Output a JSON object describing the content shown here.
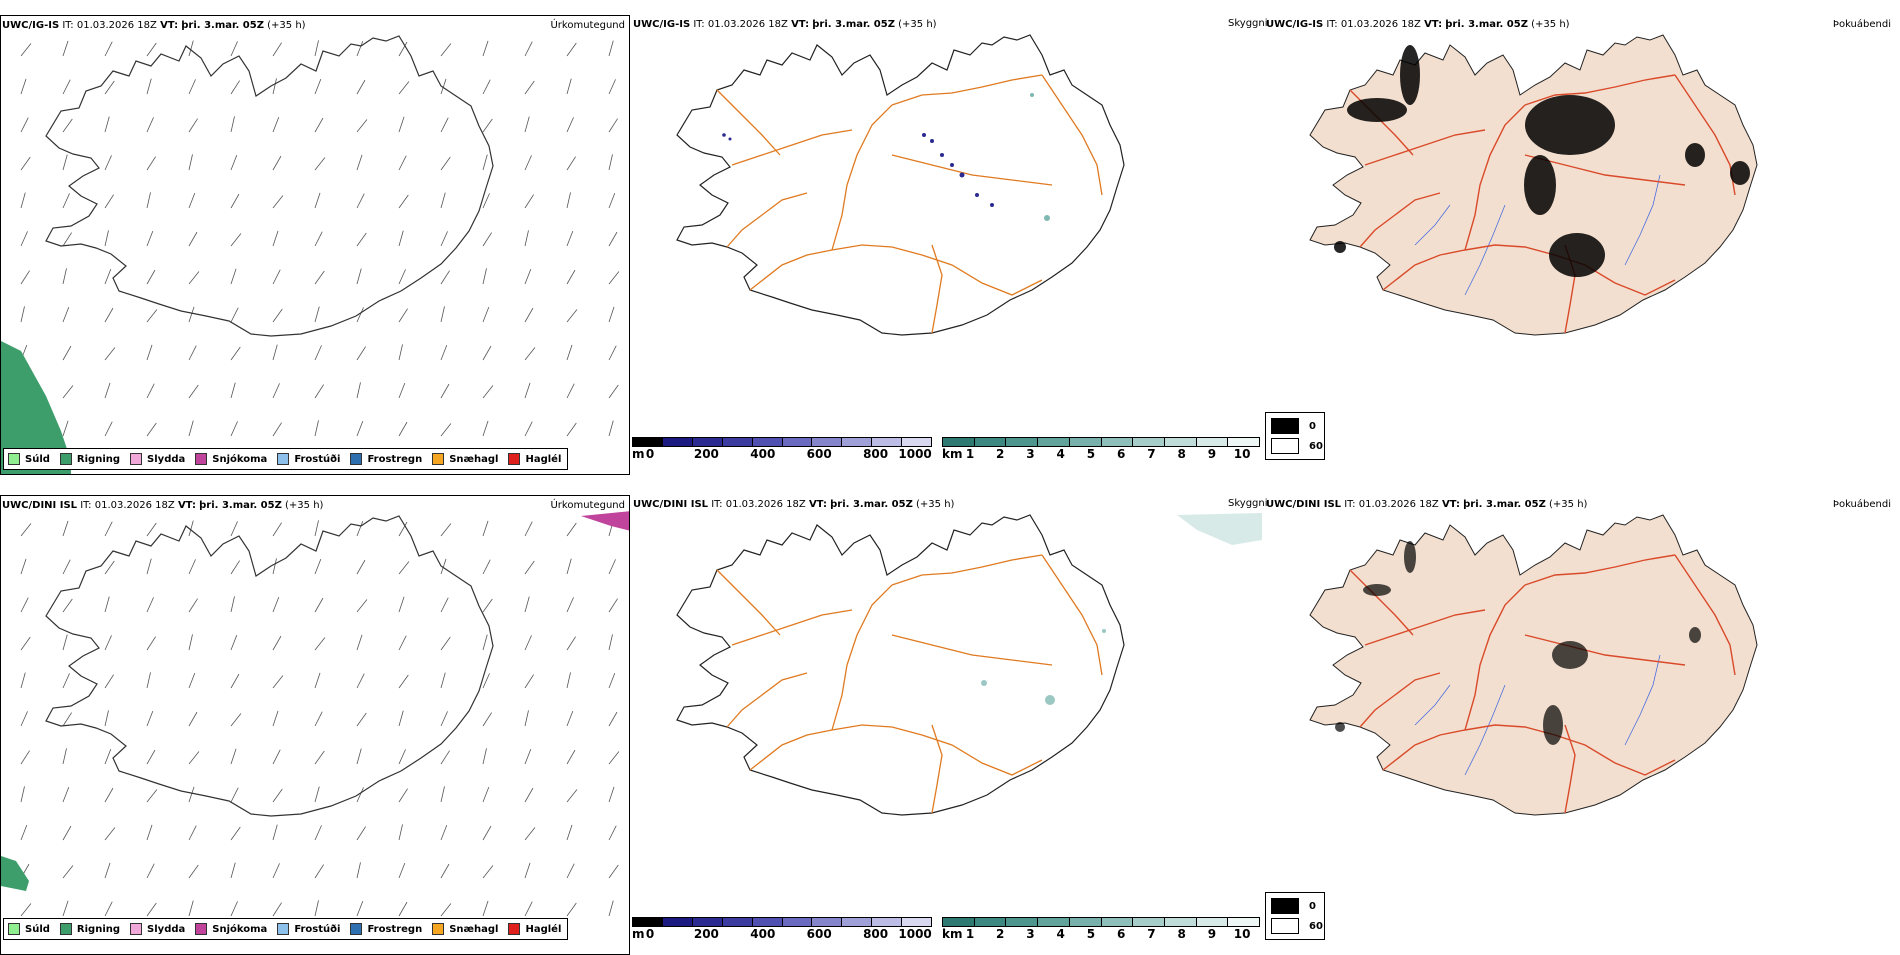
{
  "rows": [
    {
      "model": "UWC/IG-IS",
      "it_label": "IT:",
      "it_value": "01.03.2026 18Z",
      "vt_label": "VT:",
      "vt_value": "þri. 3.mar. 05Z",
      "lead": "(+35 h)"
    },
    {
      "model": "UWC/DINI ISL",
      "it_label": "IT:",
      "it_value": "01.03.2026 18Z",
      "vt_label": "VT:",
      "vt_value": "þri. 3.mar. 05Z",
      "lead": "(+35 h)"
    }
  ],
  "panel_titles": {
    "precip_type": "Úrkomutegund",
    "visibility": "Skyggni",
    "fog_index": "Þokuábendi"
  },
  "precip_legend": [
    {
      "label": "Súld",
      "color": "#90ee90"
    },
    {
      "label": "Rigning",
      "color": "#3d9e6c"
    },
    {
      "label": "Slydda",
      "color": "#f0a8d8"
    },
    {
      "label": "Snjókoma",
      "color": "#c0449c"
    },
    {
      "label": "Frostúði",
      "color": "#8ec0ec"
    },
    {
      "label": "Frostregn",
      "color": "#2e6fb0"
    },
    {
      "label": "Snæhagl",
      "color": "#f5a623"
    },
    {
      "label": "Haglél",
      "color": "#e0201c"
    }
  ],
  "cloud_base_bar": {
    "unit": "m",
    "ticks": [
      "0",
      "200",
      "400",
      "600",
      "800",
      "1000"
    ],
    "colors": [
      "#000000",
      "#1a1a80",
      "#2a2a90",
      "#3b3ba0",
      "#5050b0",
      "#6a6ac0",
      "#8585cc",
      "#a0a0d8",
      "#bcbce4",
      "#d8d8f0"
    ]
  },
  "visibility_bar": {
    "unit": "km",
    "ticks": [
      "1",
      "2",
      "3",
      "4",
      "5",
      "6",
      "7",
      "8",
      "9",
      "10"
    ],
    "colors": [
      "#2e7a72",
      "#3d8880",
      "#4e958e",
      "#62a39c",
      "#78b1ab",
      "#8fbfba",
      "#a7cdc9",
      "#bfdcd8",
      "#d7eae8",
      "#eff7f6"
    ]
  },
  "fog_legend": [
    {
      "label": "0",
      "color": "#000000"
    },
    {
      "label": "60",
      "color": "#ffffff"
    }
  ],
  "colors": {
    "road": "#e07a20",
    "coast": "#222222",
    "fog_land": "#f3dfcf",
    "fog_road": "#d94a2a",
    "river": "#4a6ee0"
  }
}
